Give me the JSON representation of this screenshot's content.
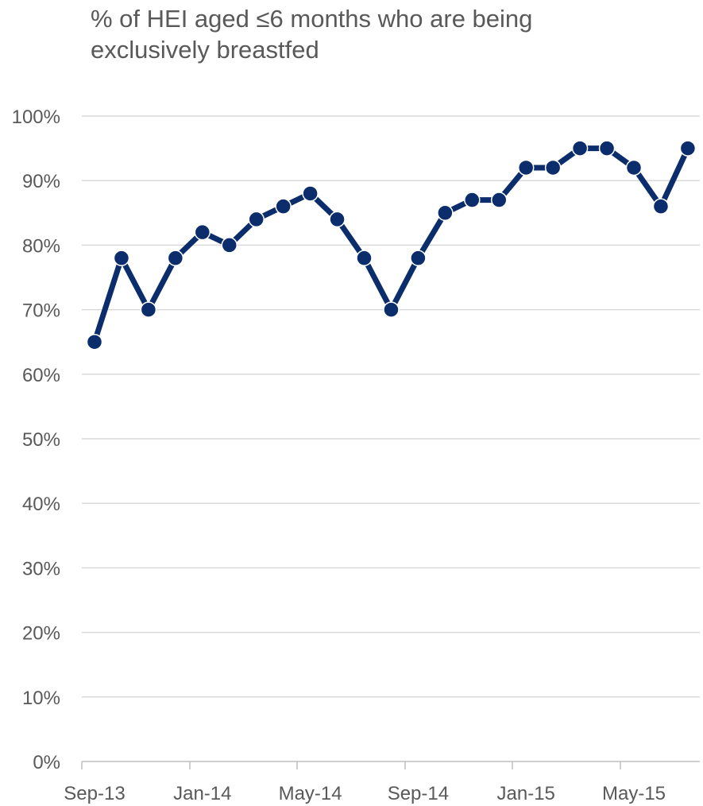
{
  "chart_data": {
    "type": "line",
    "title_lines": [
      "% of HEI aged ≤6 months who are being",
      "exclusively breastfed"
    ],
    "x": [
      "Sep-13",
      "Oct-13",
      "Nov-13",
      "Dec-13",
      "Jan-14",
      "Feb-14",
      "Mar-14",
      "Apr-14",
      "May-14",
      "Jun-14",
      "Jul-14",
      "Aug-14",
      "Sep-14",
      "Oct-14",
      "Nov-14",
      "Dec-14",
      "Jan-15",
      "Feb-15",
      "Mar-15",
      "Apr-15",
      "May-15",
      "Jun-15",
      "Jul-15"
    ],
    "x_tick_labels": [
      "Sep-13",
      "Jan-14",
      "May-14",
      "Sep-14",
      "Jan-15",
      "May-15"
    ],
    "y_tick_labels": [
      "0%",
      "10%",
      "20%",
      "30%",
      "40%",
      "50%",
      "60%",
      "70%",
      "80%",
      "90%",
      "100%"
    ],
    "series": [
      {
        "values": [
          65,
          78,
          70,
          78,
          82,
          80,
          84,
          86,
          88,
          84,
          78,
          70,
          78,
          85,
          87,
          87,
          92,
          92,
          95,
          95,
          92,
          86,
          95
        ]
      }
    ],
    "ylim": [
      0,
      100
    ],
    "grid": true,
    "line_color": "#0b2d6b",
    "marker_color": "#0b2d6b",
    "grid_color": "#d9d9d9"
  }
}
